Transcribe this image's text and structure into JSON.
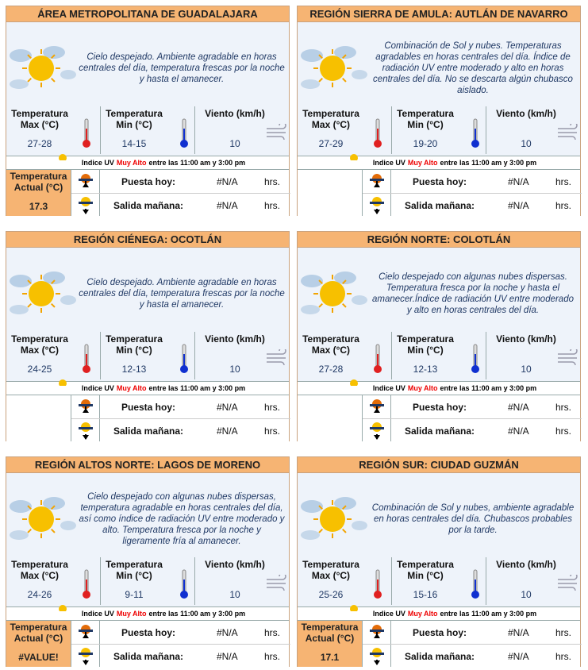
{
  "cards": [
    {
      "title": "ÁREA METROPOLITANA DE GUADALAJARA",
      "description": "Cielo despejado. Ambiente agradable en horas centrales del día, temperatura frescas por la noche y hasta el amanecer.",
      "max_label": "Temperatura Max (°C)",
      "max": "27-28",
      "min_label": "Temperatura Min (°C)",
      "min": "14-15",
      "wind_label": "Viento (km/h)",
      "wind": 10,
      "uv_prefix": "Indice UV",
      "uv_level": "Muy Alto",
      "uv_time": "entre las 11:00 am y 3:00 pm",
      "actual_label": "Temperatura Actual (°C)",
      "actual": 17.3,
      "sunset_label": "Puesta hoy:",
      "sunset": "#N/A",
      "sunset_unit": "hrs.",
      "sunrise_label": "Salida mañana:",
      "sunrise": "#N/A",
      "sunrise_unit": "hrs."
    },
    {
      "title": "REGIÓN SIERRA DE AMULA: AUTLÁN DE NAVARRO",
      "description": "Combinación de Sol y nubes. Temperaturas agradables en horas centrales del día. Índice de radiación UV entre moderado y alto en horas centrales del día. No se descarta algún chubasco aislado.",
      "max_label": "Temperatura Max (°C)",
      "max": "27-29",
      "min_label": "Temperatura Min (°C)",
      "min": "19-20",
      "wind_label": "Viento (km/h)",
      "wind": 10,
      "uv_prefix": "Indice UV",
      "uv_level": "Muy Alto",
      "uv_time": "entre las 11:00 am y 3:00 pm",
      "sunset_label": "Puesta hoy:",
      "sunset": "#N/A",
      "sunset_unit": "hrs.",
      "sunrise_label": "Salida mañana:",
      "sunrise": "#N/A",
      "sunrise_unit": "hrs."
    },
    {
      "title": "REGIÓN CIÉNEGA: OCOTLÁN",
      "description": "Cielo despejado. Ambiente agradable en horas centrales del día, temperatura frescas por la noche y hasta el amanecer.",
      "max_label": "Temperatura Max (°C)",
      "max": "24-25",
      "min_label": "Temperatura Min (°C)",
      "min": "12-13",
      "wind_label": "Viento (km/h)",
      "wind": 10,
      "uv_prefix": "Indice UV",
      "uv_level": "Muy Alto",
      "uv_time": "entre las 11:00 am y 3:00 pm",
      "sunset_label": "Puesta hoy:",
      "sunset": "#N/A",
      "sunset_unit": "hrs.",
      "sunrise_label": "Salida mañana:",
      "sunrise": "#N/A",
      "sunrise_unit": "hrs."
    },
    {
      "title": "REGIÓN NORTE: COLOTLÁN",
      "description": "Cielo despejado con algunas nubes dispersas. Temperatura fresca por la noche y hasta el amanecer.Índice de radiación UV entre moderado y alto en horas centrales del día.",
      "max_label": "Temperatura Max (°C)",
      "max": "27-28",
      "min_label": "Temperatura Min (°C)",
      "min": "12-13",
      "wind_label": "Viento (km/h)",
      "wind": 10,
      "uv_prefix": "Indice UV",
      "uv_level": "Muy Alto",
      "uv_time": "entre las 11:00 am y 3:00 pm",
      "sunset_label": "Puesta hoy:",
      "sunset": "#N/A",
      "sunset_unit": "hrs.",
      "sunrise_label": "Salida mañana:",
      "sunrise": "#N/A",
      "sunrise_unit": "hrs."
    },
    {
      "title": "REGIÓN ALTOS NORTE: LAGOS DE MORENO",
      "description": "Cielo despejado con algunas nubes dispersas, temperatura agradable en horas centrales del día, así como índice de radiación UV entre moderado y alto. Temperatura fresca por la noche y ligeramente fría al amanecer.",
      "max_label": "Temperatura Max (°C)",
      "max": "24-26",
      "min_label": "Temperatura Min (°C)",
      "min": "9-11",
      "wind_label": "Viento (km/h)",
      "wind": 10,
      "uv_prefix": "Indice UV",
      "uv_level": "Muy Alto",
      "uv_time": "entre las 11:00 am y 3:00 pm",
      "actual_label": "Temperatura Actual (°C)",
      "actual": "#VALUE!",
      "sunset_label": "Puesta hoy:",
      "sunset": "#N/A",
      "sunset_unit": "hrs.",
      "sunrise_label": "Salida mañana:",
      "sunrise": "#N/A",
      "sunrise_unit": "hrs."
    },
    {
      "title": "REGIÓN SUR: CIUDAD GUZMÁN",
      "description": "Combinación de Sol y nubes, ambiente agradable en horas centrales del día. Chubascos probables por la tarde.",
      "max_label": "Temperatura Max (°C)",
      "max": "25-26",
      "min_label": "Temperatura Min (°C)",
      "min": "15-16",
      "wind_label": "Viento (km/h)",
      "wind": 10,
      "uv_prefix": "Indice UV",
      "uv_level": "Muy Alto",
      "uv_time": "entre las 11:00 am y 3:00 pm",
      "actual_label": "Temperatura Actual (°C)",
      "actual": 17.1,
      "sunset_label": "Puesta hoy:",
      "sunset": "#N/A",
      "sunset_unit": "hrs.",
      "sunrise_label": "Salida mañana:",
      "sunrise": "#N/A",
      "sunrise_unit": "hrs."
    }
  ]
}
